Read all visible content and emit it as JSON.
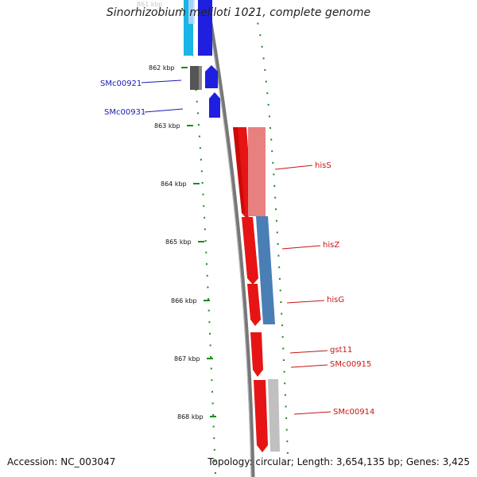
{
  "title": "Sinorhizobium meliloti 1021, complete genome",
  "accession_text": "Accession: NC_003047",
  "topology_text": "Topology: circular; Length: 3,654,135 bp; Genes: 3,425",
  "faded_top_label": "861 kbp",
  "ticks": [
    "862 kbp",
    "863 kbp",
    "864 kbp",
    "865 kbp",
    "866 kbp",
    "867 kbp",
    "868 kbp"
  ],
  "gene_labels_left": [
    "SMc00921",
    "SMc00931"
  ],
  "gene_labels_right": [
    "hisS",
    "hisZ",
    "hisG",
    "gst11",
    "SMc00915",
    "SMc00914"
  ],
  "colors": {
    "forward_gene": "#1f1fe0",
    "forward_gene_light": "#1ab4e6",
    "reverse_gene": "#e61414",
    "pink_track": "#e88080",
    "steel_track": "#4a7fb5",
    "grey_track": "#c0c0c0",
    "dark_gene": "#555555",
    "backbone": "#777777",
    "tick_green": "#1a8c1a",
    "label_blue": "#1a1ab4",
    "label_red": "#c81414"
  }
}
